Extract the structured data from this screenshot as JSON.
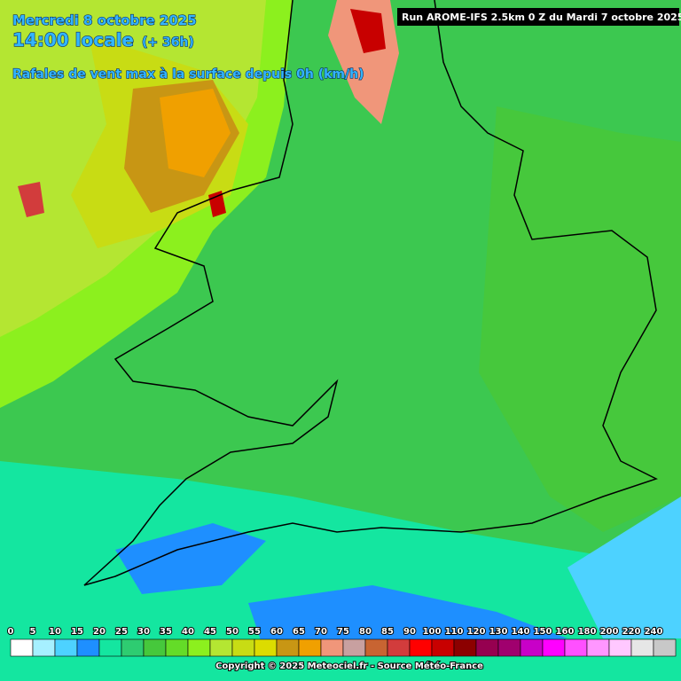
{
  "header": {
    "date": "Mercredi 8 octobre 2025",
    "time": "14:00 locale",
    "lead": "(+ 36h)",
    "parameter": "Rafales de vent max à la surface depuis 0h (km/h)"
  },
  "run_label": "Run AROME-IFS 2.5km 0 Z du Mardi 7 octobre 2025",
  "legend": {
    "items": [
      {
        "value": 0,
        "color": "#ffffff"
      },
      {
        "value": 5,
        "color": "#a6f0ff"
      },
      {
        "value": 10,
        "color": "#4dd2ff"
      },
      {
        "value": 15,
        "color": "#1e8fff"
      },
      {
        "value": 20,
        "color": "#14e6a0"
      },
      {
        "value": 25,
        "color": "#2ecc71"
      },
      {
        "value": 30,
        "color": "#46c83c"
      },
      {
        "value": 35,
        "color": "#64dc28"
      },
      {
        "value": 40,
        "color": "#8cf01e"
      },
      {
        "value": 45,
        "color": "#b4e632"
      },
      {
        "value": 50,
        "color": "#c8dc14"
      },
      {
        "value": 55,
        "color": "#dcdc00"
      },
      {
        "value": 60,
        "color": "#c89614"
      },
      {
        "value": 65,
        "color": "#f0a000"
      },
      {
        "value": 70,
        "color": "#f0967a"
      },
      {
        "value": 75,
        "color": "#c8a0a0"
      },
      {
        "value": 80,
        "color": "#c86432"
      },
      {
        "value": 85,
        "color": "#d23c3c"
      },
      {
        "value": 90,
        "color": "#ff0000"
      },
      {
        "value": 100,
        "color": "#c80000"
      },
      {
        "value": 110,
        "color": "#8c0000"
      },
      {
        "value": 120,
        "color": "#960050"
      },
      {
        "value": 130,
        "color": "#a0006e"
      },
      {
        "value": 140,
        "color": "#c800c8"
      },
      {
        "value": 150,
        "color": "#ff00ff"
      },
      {
        "value": 160,
        "color": "#ff50ff"
      },
      {
        "value": 180,
        "color": "#ff96ff"
      },
      {
        "value": 200,
        "color": "#ffc8ff"
      },
      {
        "value": 220,
        "color": "#e6e6e6"
      },
      {
        "value": 240,
        "color": "#c8c8c8"
      }
    ]
  },
  "copyright": "Copyright © 2025 Meteociel.fr - Source Météo-France"
}
